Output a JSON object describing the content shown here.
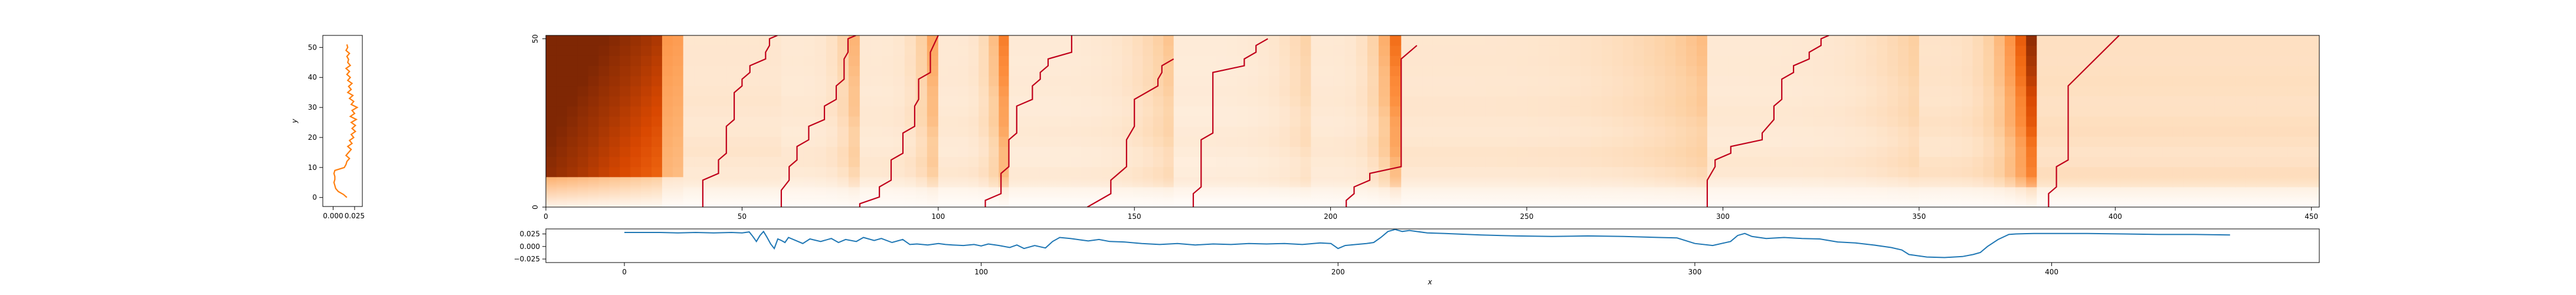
{
  "figure": {
    "background": "#ffffff"
  },
  "chart_data": [
    {
      "type": "line",
      "panel": "left",
      "title": "",
      "xlabel": "",
      "ylabel": "y",
      "xlim": [
        -0.012,
        0.034
      ],
      "ylim": [
        -3,
        54
      ],
      "xticks": [
        0.0,
        0.025
      ],
      "xtick_labels": [
        "0.000",
        "0.025"
      ],
      "yticks": [
        0,
        10,
        20,
        30,
        40,
        50
      ],
      "ytick_labels": [
        "0",
        "10",
        "20",
        "30",
        "40",
        "50"
      ],
      "color": "#ff7f0e",
      "grid": false,
      "series": [
        {
          "y": [
            0,
            1,
            2,
            3,
            4,
            5,
            6,
            7,
            8,
            9,
            10,
            11,
            12,
            13,
            14,
            15,
            16,
            17,
            18,
            19,
            20,
            21,
            22,
            23,
            24,
            25,
            26,
            27,
            28,
            29,
            30,
            31,
            32,
            33,
            34,
            35,
            36,
            37,
            38,
            39,
            40,
            41,
            42,
            43,
            44,
            45,
            46,
            47,
            48,
            49,
            50,
            51
          ],
          "x": [
            0.016,
            0.012,
            0.006,
            0.003,
            0.002,
            0.001,
            0.002,
            0.002,
            0.001,
            0.002,
            0.013,
            0.015,
            0.016,
            0.019,
            0.015,
            0.018,
            0.021,
            0.017,
            0.022,
            0.019,
            0.024,
            0.021,
            0.026,
            0.022,
            0.026,
            0.021,
            0.027,
            0.02,
            0.025,
            0.022,
            0.028,
            0.021,
            0.024,
            0.019,
            0.023,
            0.017,
            0.021,
            0.018,
            0.022,
            0.017,
            0.02,
            0.016,
            0.019,
            0.015,
            0.02,
            0.017,
            0.018,
            0.016,
            0.019,
            0.015,
            0.017,
            0.016
          ]
        }
      ]
    },
    {
      "type": "heatmap",
      "panel": "main",
      "title": "",
      "xlabel": "",
      "ylabel": "",
      "xlim": [
        0,
        452
      ],
      "ylim": [
        0,
        51
      ],
      "xticks": [
        0,
        50,
        100,
        150,
        200,
        250,
        300,
        350,
        400,
        450
      ],
      "xtick_labels": [
        "0",
        "50",
        "100",
        "150",
        "200",
        "250",
        "300",
        "350",
        "400",
        "450"
      ],
      "yticks": [
        0,
        50
      ],
      "ytick_labels": [
        "0",
        "50"
      ],
      "colormap": "Oranges",
      "path_color": "#c0001a",
      "segments": [
        {
          "x0": 0,
          "x1": 35,
          "row_profile": [
            0.55,
            0.6,
            0.65,
            0.7,
            0.72,
            0.74,
            0.76,
            0.78,
            0.8,
            0.82,
            0.84,
            0.86,
            0.88,
            0.9,
            0.92,
            0.94,
            0.96,
            0.98,
            1.0
          ],
          "bottom_fade": 0.12
        },
        {
          "x0": 35,
          "x1": 60,
          "level": 0.12,
          "right_peak": 0.0
        },
        {
          "x0": 60,
          "x1": 80,
          "level": 0.1,
          "right_peak": 0.25
        },
        {
          "x0": 80,
          "x1": 100,
          "level": 0.1,
          "right_peak": 0.3
        },
        {
          "x0": 100,
          "x1": 118,
          "level": 0.1,
          "right_peak": 0.45
        },
        {
          "x0": 118,
          "x1": 160,
          "level": 0.09,
          "right_peak": 0.2
        },
        {
          "x0": 160,
          "x1": 195,
          "level": 0.08,
          "right_peak": 0.15
        },
        {
          "x0": 195,
          "x1": 218,
          "level": 0.1,
          "right_peak": 0.5
        },
        {
          "x0": 218,
          "x1": 296,
          "level": 0.12,
          "right_peak": 0.2
        },
        {
          "x0": 296,
          "x1": 350,
          "level": 0.1,
          "right_peak": 0.15
        },
        {
          "x0": 350,
          "x1": 380,
          "level": 0.14,
          "right_peak": 0.8
        },
        {
          "x0": 380,
          "x1": 452,
          "level": 0.16,
          "right_peak": 0.0
        }
      ],
      "paths": [
        {
          "x": [
            40,
            40,
            44,
            44,
            46,
            46,
            48,
            48,
            50,
            50,
            52,
            52,
            56,
            56,
            57,
            57,
            59
          ],
          "y": [
            0,
            8,
            10,
            14,
            16,
            24,
            26,
            34,
            36,
            38,
            40,
            42,
            44,
            46,
            48,
            50,
            51
          ]
        },
        {
          "x": [
            60,
            60,
            62,
            62,
            64,
            64,
            67,
            67,
            71,
            71,
            74,
            74,
            76,
            76,
            77,
            77,
            79
          ],
          "y": [
            0,
            5,
            8,
            12,
            14,
            18,
            20,
            24,
            26,
            30,
            32,
            36,
            38,
            44,
            46,
            50,
            51
          ]
        },
        {
          "x": [
            80,
            80,
            85,
            85,
            88,
            88,
            91,
            91,
            94,
            94,
            95,
            95,
            98,
            98,
            100
          ],
          "y": [
            0,
            1,
            3,
            6,
            8,
            14,
            16,
            22,
            24,
            30,
            32,
            38,
            40,
            46,
            51
          ]
        },
        {
          "x": [
            112,
            112,
            116,
            116,
            118,
            118,
            120,
            120,
            124,
            124,
            126,
            126,
            128,
            128,
            134,
            134
          ],
          "y": [
            0,
            2,
            4,
            10,
            12,
            20,
            22,
            30,
            32,
            36,
            38,
            40,
            42,
            44,
            46,
            51
          ]
        },
        {
          "x": [
            138,
            144,
            144,
            148,
            148,
            150,
            150,
            156,
            156,
            157,
            157,
            160
          ],
          "y": [
            0,
            4,
            8,
            12,
            20,
            24,
            32,
            36,
            38,
            40,
            42,
            44
          ]
        },
        {
          "x": [
            165,
            165,
            167,
            167,
            170,
            170,
            178,
            178,
            181,
            181,
            184
          ],
          "y": [
            0,
            4,
            6,
            20,
            22,
            40,
            42,
            44,
            46,
            48,
            50
          ]
        },
        {
          "x": [
            204,
            204,
            206,
            206,
            210,
            210,
            218,
            218,
            222
          ],
          "y": [
            0,
            2,
            4,
            6,
            8,
            10,
            12,
            44,
            48
          ]
        },
        {
          "x": [
            296,
            296,
            298,
            298,
            302,
            302,
            310,
            310,
            313,
            313,
            315,
            315,
            318,
            318,
            322,
            322,
            325,
            325,
            327
          ],
          "y": [
            0,
            8,
            12,
            14,
            16,
            18,
            20,
            22,
            26,
            30,
            32,
            38,
            40,
            42,
            44,
            46,
            48,
            50,
            51
          ]
        },
        {
          "x": [
            383,
            383,
            385,
            385,
            388,
            388,
            401
          ],
          "y": [
            0,
            4,
            6,
            12,
            14,
            36,
            51
          ]
        }
      ]
    },
    {
      "type": "line",
      "panel": "bottom",
      "title": "",
      "xlabel": "x",
      "ylabel": "",
      "xlim": [
        -22,
        475
      ],
      "ylim": [
        -0.032,
        0.035
      ],
      "xticks": [
        0,
        100,
        200,
        300,
        400
      ],
      "xtick_labels": [
        "0",
        "100",
        "200",
        "300",
        "400"
      ],
      "yticks": [
        -0.025,
        0.0,
        0.025
      ],
      "ytick_labels": [
        "−0.025",
        "0.000",
        "0.025"
      ],
      "color": "#1f77b4",
      "grid": false,
      "series": [
        {
          "x": [
            0,
            5,
            10,
            15,
            20,
            25,
            30,
            33,
            35,
            36,
            37,
            38,
            39,
            40,
            41,
            42,
            43,
            44,
            45,
            46,
            48,
            50,
            52,
            55,
            58,
            60,
            62,
            65,
            67,
            70,
            72,
            75,
            78,
            80,
            82,
            85,
            88,
            90,
            92,
            95,
            98,
            100,
            102,
            105,
            108,
            110,
            112,
            115,
            118,
            120,
            122,
            125,
            128,
            130,
            133,
            136,
            140,
            145,
            150,
            155,
            160,
            165,
            170,
            175,
            180,
            185,
            190,
            195,
            198,
            200,
            202,
            205,
            208,
            210,
            212,
            214,
            216,
            218,
            220,
            225,
            230,
            240,
            250,
            260,
            270,
            280,
            290,
            295,
            300,
            305,
            310,
            312,
            314,
            316,
            318,
            320,
            325,
            330,
            335,
            340,
            345,
            350,
            355,
            358,
            360,
            365,
            370,
            375,
            378,
            380,
            382,
            385,
            388,
            390,
            395,
            400,
            410,
            420,
            430,
            440,
            450
          ],
          "y": [
            0.028,
            0.028,
            0.028,
            0.027,
            0.028,
            0.027,
            0.028,
            0.027,
            0.029,
            0.02,
            0.01,
            0.022,
            0.03,
            0.018,
            0.005,
            -0.004,
            0.015,
            0.012,
            0.008,
            0.018,
            0.012,
            0.006,
            0.015,
            0.01,
            0.016,
            0.008,
            0.014,
            0.01,
            0.018,
            0.012,
            0.016,
            0.008,
            0.014,
            0.004,
            0.005,
            0.003,
            0.006,
            0.004,
            0.003,
            0.002,
            0.004,
            0.001,
            0.005,
            0.002,
            -0.002,
            0.003,
            -0.004,
            0.002,
            -0.003,
            0.01,
            0.018,
            0.016,
            0.013,
            0.011,
            0.014,
            0.01,
            0.009,
            0.006,
            0.004,
            0.006,
            0.003,
            0.005,
            0.004,
            0.006,
            0.005,
            0.006,
            0.004,
            0.007,
            0.006,
            -0.004,
            0.002,
            0.004,
            0.006,
            0.008,
            0.018,
            0.03,
            0.034,
            0.03,
            0.032,
            0.027,
            0.026,
            0.023,
            0.021,
            0.02,
            0.021,
            0.02,
            0.018,
            0.017,
            0.006,
            0.002,
            0.01,
            0.022,
            0.026,
            0.02,
            0.018,
            0.016,
            0.018,
            0.016,
            0.015,
            0.009,
            0.007,
            0.003,
            -0.002,
            -0.007,
            -0.016,
            -0.021,
            -0.022,
            -0.02,
            -0.016,
            -0.012,
            0.0,
            0.014,
            0.024,
            0.025,
            0.026,
            0.026,
            0.026,
            0.025,
            0.024,
            0.024,
            0.023
          ]
        }
      ]
    }
  ]
}
